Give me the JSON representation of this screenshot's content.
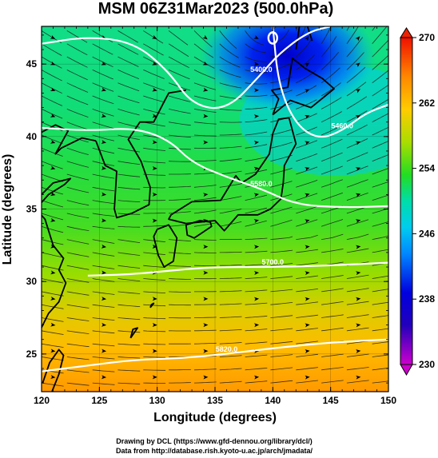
{
  "chart_data": {
    "type": "heatmap",
    "title": "MSM 06Z31Mar2023 (500.0hPa)",
    "xlabel": "Longitude (degrees)",
    "ylabel": "Latitude  (degrees)",
    "xlim": [
      120,
      150
    ],
    "ylim": [
      22.4,
      47.6
    ],
    "x_ticks": [
      120,
      125,
      130,
      135,
      140,
      145,
      150
    ],
    "y_ticks": [
      25,
      30,
      35,
      40,
      45
    ],
    "colorbar": {
      "range": [
        230,
        270
      ],
      "ticks": [
        230,
        238,
        246,
        254,
        262,
        270
      ],
      "colors": [
        "#cc00cc",
        "#0000cc",
        "#0088ff",
        "#00ddee",
        "#22dd22",
        "#ccdd00",
        "#ffaa00",
        "#ff4400",
        "#ee2200"
      ]
    },
    "contours": [
      {
        "label": "5400.0",
        "points": [
          [
            120,
            46.4
          ],
          [
            124,
            46.9
          ],
          [
            128,
            46.5
          ],
          [
            131,
            44.5
          ],
          [
            133,
            42.2
          ],
          [
            136,
            41.8
          ],
          [
            139,
            44.3
          ],
          [
            140.5,
            45.7
          ],
          [
            143,
            47.2
          ],
          [
            145,
            47.6
          ]
        ]
      },
      {
        "label": "5460.0",
        "points": [
          [
            140,
            47.6
          ],
          [
            140.5,
            43.5
          ],
          [
            142,
            40.8
          ],
          [
            144,
            39.8
          ],
          [
            146,
            40.4
          ],
          [
            148,
            41.6
          ],
          [
            150,
            42.2
          ]
        ]
      },
      {
        "label": "5580.0",
        "points": [
          [
            120,
            40.6
          ],
          [
            124,
            40.4
          ],
          [
            128,
            40.6
          ],
          [
            131,
            39.8
          ],
          [
            133,
            38.2
          ],
          [
            136,
            37.2
          ],
          [
            139,
            36.4
          ],
          [
            142,
            35.3
          ],
          [
            146,
            35.1
          ],
          [
            150,
            35.2
          ]
        ]
      },
      {
        "label": "5700.0",
        "points": [
          [
            124,
            30.4
          ],
          [
            128,
            30.5
          ],
          [
            133,
            30.9
          ],
          [
            136,
            31.0
          ],
          [
            140,
            31.0
          ],
          [
            145,
            31.1
          ],
          [
            150,
            31.3
          ]
        ]
      },
      {
        "label": "5820.0",
        "points": [
          [
            120,
            23.8
          ],
          [
            124,
            24.2
          ],
          [
            128,
            24.6
          ],
          [
            132,
            24.7
          ],
          [
            136,
            25.0
          ],
          [
            140,
            25.4
          ],
          [
            145,
            25.8
          ],
          [
            150,
            26.0
          ]
        ]
      }
    ],
    "low_center": {
      "label": "",
      "lon": 140,
      "lat": 46.8
    }
  },
  "footer": {
    "line1": "Drawing by DCL (https://www.gfd-dennou.org/library/dcl/)",
    "line2": "Data from http://database.rish.kyoto-u.ac.jp/arch/jmadata/"
  }
}
